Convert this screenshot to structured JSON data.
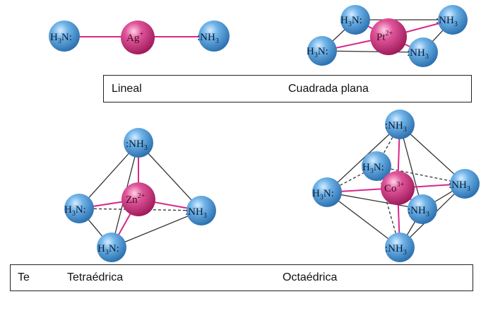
{
  "labels": {
    "top": {
      "lineal": "Lineal",
      "cuadrada": "Cuadrada plana"
    },
    "bottom": {
      "te": "Te",
      "tetraedrica": "Tetraédrica",
      "octaedrica": "Octaédrica"
    }
  },
  "ligand": {
    "left": "H",
    "left_sub": "3",
    "left_end": "N:",
    "right_start": ":NH",
    "right_sub": "3"
  },
  "metals": {
    "ag": {
      "symbol": "Ag",
      "charge": "+"
    },
    "pt": {
      "symbol": "Pt",
      "charge": "2+"
    },
    "zn": {
      "symbol": "Zn",
      "charge": "2+"
    },
    "co": {
      "symbol": "Co",
      "charge": "3+"
    }
  },
  "colors": {
    "ligand_sphere": "#4f9ad6",
    "metal_sphere": "#d23c86",
    "metal_bond": "#d8288a",
    "edge": "#333333"
  }
}
